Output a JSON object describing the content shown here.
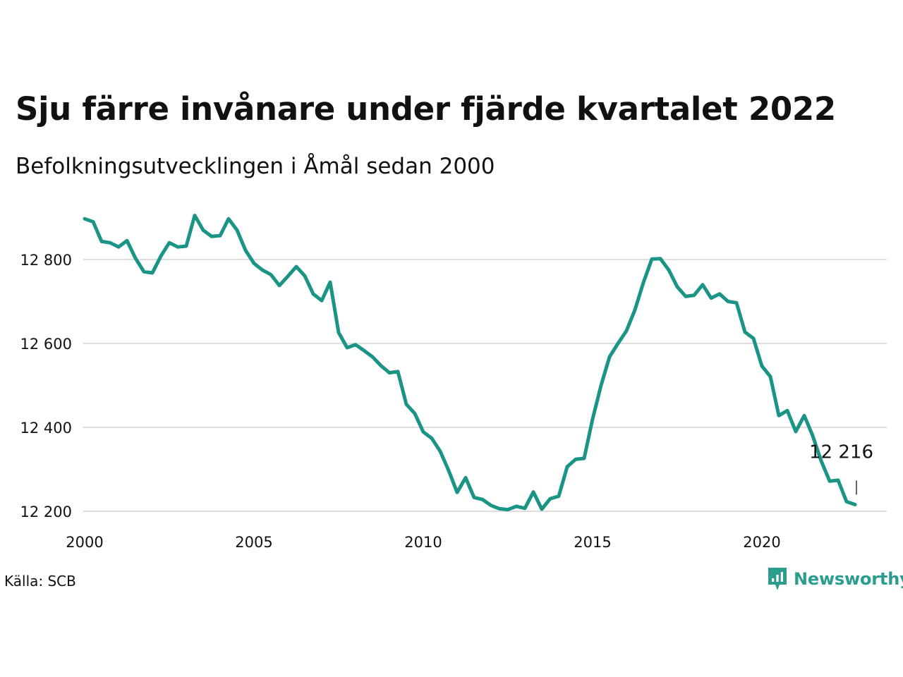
{
  "header": {
    "title": "Sju färre invånare under fjärde kvartalet 2022",
    "subtitle": "Befolkningsutvecklingen i Åmål sedan 2000"
  },
  "footer": {
    "source": "Källa: SCB",
    "brand": "Newsworthy"
  },
  "colors": {
    "line": "#1a9485",
    "grid": "#dddddd",
    "brand": "#2a9d8f"
  },
  "icons": {
    "brand_logo": "newsworthy-logo-icon"
  },
  "chart_data": {
    "type": "line",
    "title": "Sju färre invånare under fjärde kvartalet 2022",
    "subtitle": "Befolkningsutvecklingen i Åmål sedan 2000",
    "xlabel": "",
    "ylabel": "",
    "xlim": [
      2000,
      2023.5
    ],
    "ylim": [
      12200,
      12900
    ],
    "x_ticks": [
      2000,
      2005,
      2010,
      2015,
      2020
    ],
    "y_ticks": [
      12200,
      12400,
      12600,
      12800
    ],
    "y_tick_labels": [
      "12 200",
      "12 400",
      "12 600",
      "12 800"
    ],
    "grid": "horizontal",
    "legend": "none",
    "end_label": "12 216",
    "series": [
      {
        "x": [
          2000.0,
          2000.25,
          2000.5,
          2000.75,
          2001.0,
          2001.25,
          2001.5,
          2001.75,
          2002.0,
          2002.25,
          2002.5,
          2002.75,
          2003.0,
          2003.25,
          2003.5,
          2003.75,
          2004.0,
          2004.25,
          2004.5,
          2004.75,
          2005.0,
          2005.25,
          2005.5,
          2005.75,
          2006.0,
          2006.25,
          2006.5,
          2006.75,
          2007.0,
          2007.25,
          2007.5,
          2007.75,
          2008.0,
          2008.25,
          2008.5,
          2008.75,
          2009.0,
          2009.25,
          2009.5,
          2009.75,
          2010.0,
          2010.25,
          2010.5,
          2010.75,
          2011.0,
          2011.25,
          2011.5,
          2011.75,
          2012.0,
          2012.25,
          2012.5,
          2012.75,
          2013.0,
          2013.25,
          2013.5,
          2013.75,
          2014.0,
          2014.25,
          2014.5,
          2014.75,
          2015.0,
          2015.25,
          2015.5,
          2015.75,
          2016.0,
          2016.25,
          2016.5,
          2016.75,
          2017.0,
          2017.25,
          2017.5,
          2017.75,
          2018.0,
          2018.25,
          2018.5,
          2018.75,
          2019.0,
          2019.25,
          2019.5,
          2019.75,
          2020.0,
          2020.25,
          2020.5,
          2020.75,
          2021.0,
          2021.25,
          2021.5,
          2021.75,
          2022.0,
          2022.25,
          2022.5,
          2022.75
        ],
        "values": [
          12897,
          12890,
          12843,
          12840,
          12830,
          12845,
          12803,
          12771,
          12768,
          12808,
          12840,
          12830,
          12832,
          12905,
          12870,
          12855,
          12857,
          12897,
          12870,
          12822,
          12791,
          12775,
          12764,
          12738,
          12760,
          12783,
          12761,
          12718,
          12702,
          12746,
          12626,
          12590,
          12597,
          12583,
          12568,
          12547,
          12530,
          12533,
          12455,
          12433,
          12389,
          12374,
          12343,
          12297,
          12245,
          12280,
          12233,
          12228,
          12214,
          12206,
          12204,
          12212,
          12207,
          12246,
          12205,
          12230,
          12236,
          12306,
          12324,
          12326,
          12420,
          12500,
          12568,
          12600,
          12630,
          12680,
          12745,
          12801,
          12802,
          12775,
          12735,
          12712,
          12715,
          12740,
          12708,
          12718,
          12700,
          12697,
          12627,
          12612,
          12546,
          12521,
          12428,
          12440,
          12390,
          12428,
          12380,
          12320,
          12272,
          12274,
          12223,
          12216
        ]
      }
    ]
  }
}
